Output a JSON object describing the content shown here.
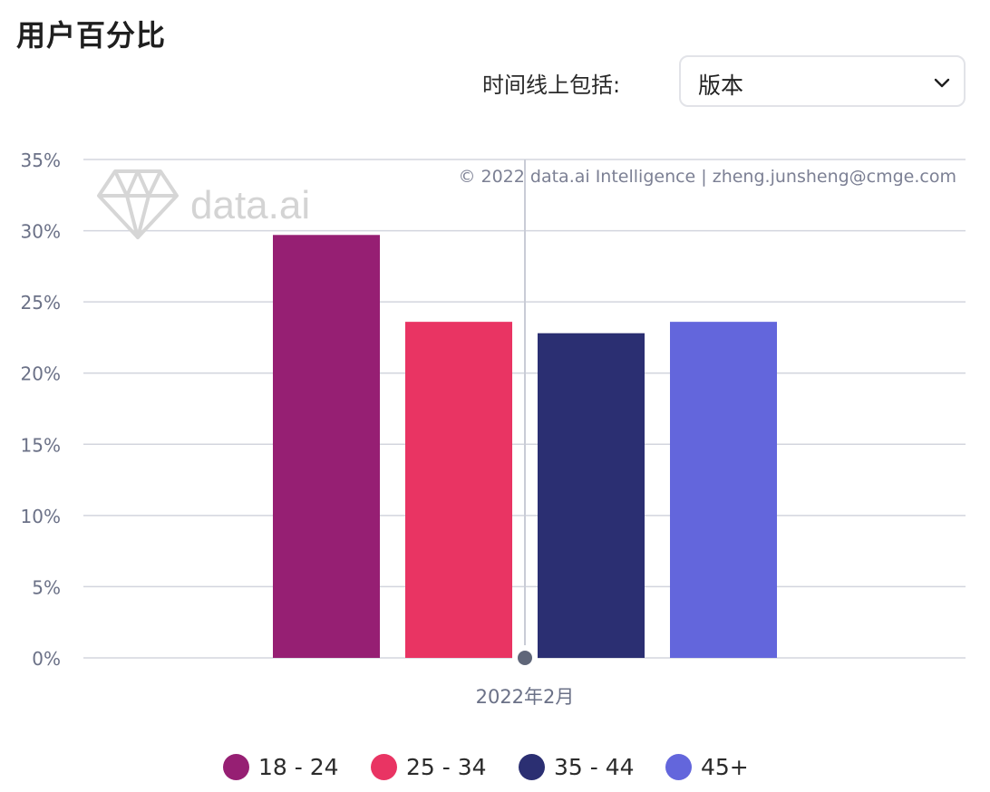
{
  "header": {
    "title": "用户百分比",
    "filter_label": "时间线上包括:",
    "filter_value": "版本"
  },
  "watermark": {
    "brand": "data.ai",
    "copyright": "© 2022 data.ai Intelligence | zheng.junsheng@cmge.com"
  },
  "colors": {
    "grid": "#d3d5de",
    "tick_text": "#6b7187",
    "crosshair": "#c9ccd6",
    "marker": "#5f6679"
  },
  "chart_data": {
    "type": "bar",
    "categories": [
      "2022年2月"
    ],
    "series": [
      {
        "name": "18 - 24",
        "color": "#961f73",
        "values": [
          29.7
        ]
      },
      {
        "name": "25 - 34",
        "color": "#e93463",
        "values": [
          23.6
        ]
      },
      {
        "name": "35 - 44",
        "color": "#2b2f72",
        "values": [
          22.8
        ]
      },
      {
        "name": "45+",
        "color": "#6366dc",
        "values": [
          23.6
        ]
      }
    ],
    "ylim": [
      0,
      35
    ],
    "yticks": [
      0,
      5,
      10,
      15,
      20,
      25,
      30,
      35
    ],
    "ytick_labels": [
      "0%",
      "5%",
      "10%",
      "15%",
      "20%",
      "25%",
      "30%",
      "35%"
    ],
    "y_unit": "%",
    "grid": true,
    "legend_position": "bottom"
  }
}
